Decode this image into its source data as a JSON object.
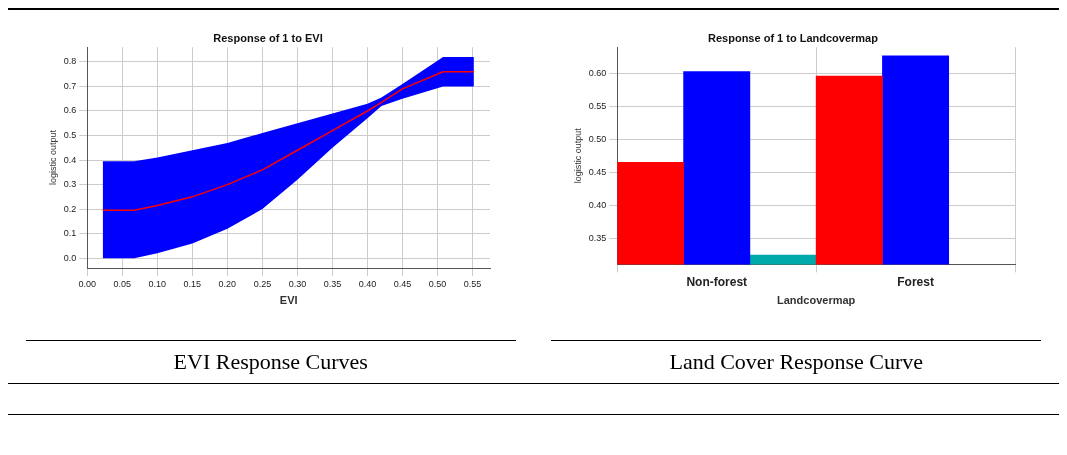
{
  "chart_data": [
    {
      "type": "line",
      "title": "Response of 1 to EVI",
      "xlabel": "EVI",
      "ylabel": "logistic output",
      "annotations": [
        "EVI Response Curves"
      ],
      "series": [
        {
          "color": "#ff0000",
          "x": [
            0.022,
            0.067,
            0.1,
            0.15,
            0.2,
            0.25,
            0.3,
            0.35,
            0.4,
            0.42,
            0.45,
            0.508,
            0.552
          ],
          "values": [
            0.195,
            0.195,
            0.215,
            0.25,
            0.3,
            0.36,
            0.44,
            0.52,
            0.6,
            0.635,
            0.69,
            0.76,
            0.76
          ],
          "colors": [
            "#0000ff",
            "#0000ff",
            "#0000ff",
            "#0000ff",
            "#0000ff",
            "#0000ff",
            "#0000ff",
            "#0000ff",
            "#0000ff",
            "#0000ff",
            "#0000ff",
            "#0000ff",
            "#0000ff"
          ],
          "lower": [
            0,
            0,
            0.02,
            0.06,
            0.12,
            0.2,
            0.32,
            0.45,
            0.57,
            0.62,
            0.65,
            0.7,
            0.7
          ],
          "upper": [
            0.395,
            0.395,
            0.41,
            0.44,
            0.47,
            0.51,
            0.55,
            0.59,
            0.63,
            0.655,
            0.71,
            0.82,
            0.82
          ]
        }
      ],
      "xlim": [
        0,
        0.575
      ],
      "xticks": [
        {
          "value": 0,
          "label": "0.00"
        },
        {
          "value": 0.05,
          "label": "0.05"
        },
        {
          "value": 0.1,
          "label": "0.10"
        },
        {
          "value": 0.15,
          "label": "0.15"
        },
        {
          "value": 0.2,
          "label": "0.20"
        },
        {
          "value": 0.25,
          "label": "0.25"
        },
        {
          "value": 0.3,
          "label": "0.30"
        },
        {
          "value": 0.35,
          "label": "0.35"
        },
        {
          "value": 0.4,
          "label": "0.40"
        },
        {
          "value": 0.45,
          "label": "0.45"
        },
        {
          "value": 0.5,
          "label": "0.50"
        },
        {
          "value": 0.55,
          "label": "0.55"
        }
      ],
      "ylim": [
        -0.04,
        0.86
      ],
      "yticks": [
        {
          "value": 0,
          "label": "0.0"
        },
        {
          "value": 0.1,
          "label": "0.1"
        },
        {
          "value": 0.2,
          "label": "0.2"
        },
        {
          "value": 0.3,
          "label": "0.3"
        },
        {
          "value": 0.4,
          "label": "0.4"
        },
        {
          "value": 0.5,
          "label": "0.5"
        },
        {
          "value": 0.6,
          "label": "0.6"
        },
        {
          "value": 0.7,
          "label": "0.7"
        },
        {
          "value": 0.8,
          "label": "0.8"
        }
      ],
      "grid": true,
      "legend": false,
      "marker": "none",
      "line_style": "solid"
    },
    {
      "type": "bar",
      "title": "Response of 1 to Landcovermap",
      "xlabel": "Landcovermap",
      "ylabel": "logistic output",
      "annotations": [
        "Land Cover Response Curve"
      ],
      "categories": [
        "Non-forest",
        "Forest"
      ],
      "series": [
        {
          "color": "#ff0000",
          "values": [
            0.465,
            0.596
          ]
        },
        {
          "color": "#0000ff",
          "values": [
            0.603,
            0.627
          ]
        },
        {
          "color": "#00aaaa",
          "values": [
            0.324,
            null
          ]
        }
      ],
      "ylim": [
        0.31,
        0.64
      ],
      "yticks": [
        {
          "value": 0.35,
          "label": "0.35"
        },
        {
          "value": 0.4,
          "label": "0.40"
        },
        {
          "value": 0.45,
          "label": "0.45"
        },
        {
          "value": 0.5,
          "label": "0.50"
        },
        {
          "value": 0.55,
          "label": "0.55"
        },
        {
          "value": 0.6,
          "label": "0.60"
        }
      ],
      "grid": true,
      "legend": false
    }
  ]
}
